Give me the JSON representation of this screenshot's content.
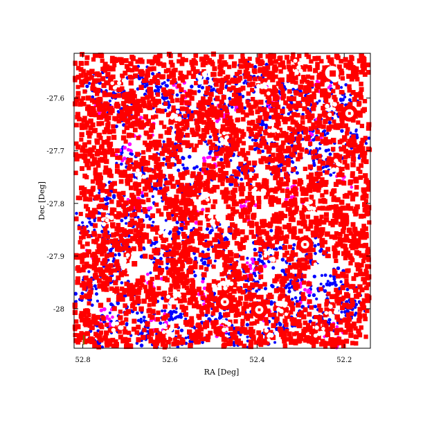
{
  "chart_data": {
    "type": "scatter",
    "title": "",
    "xlabel": "RA [Deg]",
    "ylabel": "Dec [Deg]",
    "xlim": [
      52.82,
      52.14
    ],
    "ylim": [
      -28.075,
      -27.515
    ],
    "x_ticks": [
      {
        "value": 52.8,
        "label": "52.8"
      },
      {
        "value": 52.6,
        "label": "52.6"
      },
      {
        "value": 52.4,
        "label": "52.4"
      },
      {
        "value": 52.2,
        "label": "52.2"
      }
    ],
    "y_ticks": [
      {
        "value": -27.6,
        "label": "-27.6"
      },
      {
        "value": -27.7,
        "label": "-27.7"
      },
      {
        "value": -27.8,
        "label": "-27.8"
      },
      {
        "value": -27.9,
        "label": "-27.9"
      },
      {
        "value": -28.0,
        "label": "-28"
      }
    ],
    "grid": false,
    "legend": null,
    "series": [
      {
        "color": "#0000ff",
        "marker": "circle",
        "cluster_points": [
          [
            52.76,
            -27.58
          ],
          [
            52.71,
            -27.62
          ],
          [
            52.66,
            -27.57
          ],
          [
            52.61,
            -27.6
          ],
          [
            52.56,
            -27.64
          ],
          [
            52.51,
            -27.58
          ],
          [
            52.46,
            -27.61
          ],
          [
            52.41,
            -27.56
          ],
          [
            52.36,
            -27.62
          ],
          [
            52.31,
            -27.59
          ],
          [
            52.26,
            -27.64
          ],
          [
            52.21,
            -27.6
          ],
          [
            52.18,
            -27.69
          ],
          [
            52.24,
            -27.73
          ],
          [
            52.29,
            -27.68
          ],
          [
            52.34,
            -27.72
          ],
          [
            52.39,
            -27.67
          ],
          [
            52.44,
            -27.74
          ],
          [
            52.49,
            -27.7
          ],
          [
            52.54,
            -27.76
          ],
          [
            52.59,
            -27.71
          ],
          [
            52.64,
            -27.77
          ],
          [
            52.69,
            -27.72
          ],
          [
            52.74,
            -27.79
          ],
          [
            52.78,
            -27.84
          ],
          [
            52.73,
            -27.88
          ],
          [
            52.68,
            -27.83
          ],
          [
            52.63,
            -27.9
          ],
          [
            52.58,
            -27.85
          ],
          [
            52.53,
            -27.91
          ],
          [
            52.48,
            -27.86
          ],
          [
            52.43,
            -27.93
          ],
          [
            52.38,
            -27.88
          ],
          [
            52.33,
            -27.94
          ],
          [
            52.28,
            -27.89
          ],
          [
            52.23,
            -27.95
          ],
          [
            52.19,
            -27.99
          ],
          [
            52.25,
            -28.02
          ],
          [
            52.3,
            -27.98
          ],
          [
            52.35,
            -28.04
          ],
          [
            52.4,
            -27.99
          ],
          [
            52.45,
            -28.05
          ],
          [
            52.5,
            -28.0
          ],
          [
            52.55,
            -28.06
          ],
          [
            52.6,
            -28.01
          ],
          [
            52.65,
            -28.05
          ],
          [
            52.7,
            -28.0
          ],
          [
            52.75,
            -28.04
          ],
          [
            52.79,
            -27.96
          ],
          [
            52.72,
            -27.93
          ]
        ]
      },
      {
        "color": "#ff00ff",
        "marker": "circle",
        "cluster_points": [
          [
            52.75,
            -27.62
          ],
          [
            52.66,
            -27.66
          ],
          [
            52.57,
            -27.59
          ],
          [
            52.47,
            -27.63
          ],
          [
            52.37,
            -27.6
          ],
          [
            52.27,
            -27.66
          ],
          [
            52.2,
            -27.75
          ],
          [
            52.32,
            -27.79
          ],
          [
            52.43,
            -27.81
          ],
          [
            52.55,
            -27.82
          ],
          [
            52.67,
            -27.8
          ],
          [
            52.77,
            -27.9
          ],
          [
            52.64,
            -27.95
          ],
          [
            52.52,
            -27.97
          ],
          [
            52.41,
            -27.92
          ],
          [
            52.29,
            -27.97
          ],
          [
            52.22,
            -28.05
          ],
          [
            52.37,
            -28.01
          ],
          [
            52.49,
            -28.04
          ],
          [
            52.62,
            -28.03
          ],
          [
            52.74,
            -28.02
          ],
          [
            52.24,
            -27.58
          ],
          [
            52.51,
            -27.72
          ],
          [
            52.7,
            -27.7
          ]
        ]
      },
      {
        "color": "#ff0000",
        "marker": "square",
        "cluster_points": [
          [
            52.8,
            -27.55
          ],
          [
            52.79,
            -27.62
          ],
          [
            52.8,
            -27.7
          ],
          [
            52.79,
            -27.78
          ],
          [
            52.8,
            -27.86
          ],
          [
            52.79,
            -27.94
          ],
          [
            52.8,
            -28.02
          ],
          [
            52.77,
            -28.06
          ],
          [
            52.7,
            -28.06
          ],
          [
            52.62,
            -28.06
          ],
          [
            52.54,
            -28.06
          ],
          [
            52.46,
            -28.06
          ],
          [
            52.38,
            -28.06
          ],
          [
            52.3,
            -28.06
          ],
          [
            52.22,
            -28.06
          ],
          [
            52.16,
            -28.02
          ],
          [
            52.15,
            -27.94
          ],
          [
            52.16,
            -27.86
          ],
          [
            52.15,
            -27.78
          ],
          [
            52.16,
            -27.7
          ],
          [
            52.15,
            -27.62
          ],
          [
            52.16,
            -27.55
          ],
          [
            52.23,
            -27.53
          ],
          [
            52.31,
            -27.53
          ],
          [
            52.39,
            -27.53
          ],
          [
            52.47,
            -27.53
          ],
          [
            52.55,
            -27.53
          ],
          [
            52.63,
            -27.53
          ],
          [
            52.71,
            -27.53
          ],
          [
            52.75,
            -27.66
          ],
          [
            52.69,
            -27.64
          ],
          [
            52.63,
            -27.69
          ],
          [
            52.57,
            -27.66
          ],
          [
            52.51,
            -27.65
          ],
          [
            52.45,
            -27.67
          ],
          [
            52.39,
            -27.64
          ],
          [
            52.33,
            -27.68
          ],
          [
            52.27,
            -27.66
          ],
          [
            52.21,
            -27.62
          ],
          [
            52.26,
            -27.58
          ],
          [
            52.32,
            -27.61
          ],
          [
            52.36,
            -27.57
          ],
          [
            52.44,
            -27.59
          ],
          [
            52.52,
            -27.61
          ],
          [
            52.6,
            -27.59
          ],
          [
            52.67,
            -27.61
          ],
          [
            52.73,
            -27.58
          ],
          [
            52.74,
            -27.74
          ],
          [
            52.68,
            -27.76
          ],
          [
            52.62,
            -27.74
          ],
          [
            52.56,
            -27.78
          ],
          [
            52.5,
            -27.77
          ],
          [
            52.44,
            -27.79
          ],
          [
            52.38,
            -27.76
          ],
          [
            52.32,
            -27.8
          ],
          [
            52.26,
            -27.77
          ],
          [
            52.2,
            -27.82
          ],
          [
            52.24,
            -27.86
          ],
          [
            52.3,
            -27.84
          ],
          [
            52.36,
            -27.87
          ],
          [
            52.42,
            -27.84
          ],
          [
            52.48,
            -27.88
          ],
          [
            52.54,
            -27.85
          ],
          [
            52.6,
            -27.89
          ],
          [
            52.66,
            -27.86
          ],
          [
            52.72,
            -27.88
          ],
          [
            52.76,
            -27.93
          ],
          [
            52.7,
            -27.97
          ],
          [
            52.64,
            -27.98
          ],
          [
            52.58,
            -27.95
          ],
          [
            52.52,
            -28.0
          ],
          [
            52.46,
            -27.97
          ],
          [
            52.4,
            -28.01
          ],
          [
            52.34,
            -27.98
          ],
          [
            52.28,
            -28.03
          ],
          [
            52.21,
            -27.98
          ],
          [
            52.19,
            -27.9
          ],
          [
            52.22,
            -27.72
          ],
          [
            52.35,
            -27.71
          ],
          [
            52.47,
            -27.72
          ],
          [
            52.59,
            -27.8
          ],
          [
            52.71,
            -27.82
          ],
          [
            52.56,
            -27.92
          ],
          [
            52.44,
            -27.94
          ],
          [
            52.31,
            -27.92
          ]
        ]
      },
      {
        "color": "#ffffff",
        "marker": "circle",
        "cluster_points": [
          [
            52.72,
            -27.57
          ],
          [
            52.53,
            -27.56
          ],
          [
            52.38,
            -27.58
          ],
          [
            52.31,
            -27.54
          ],
          [
            52.23,
            -27.62
          ],
          [
            52.58,
            -27.64
          ],
          [
            52.47,
            -27.68
          ],
          [
            52.36,
            -27.66
          ],
          [
            52.22,
            -27.73
          ],
          [
            52.67,
            -27.74
          ],
          [
            52.53,
            -27.79
          ],
          [
            52.4,
            -27.78
          ],
          [
            52.28,
            -27.81
          ],
          [
            52.74,
            -27.83
          ],
          [
            52.61,
            -27.86
          ],
          [
            52.5,
            -27.83
          ],
          [
            52.37,
            -27.9
          ],
          [
            52.25,
            -27.92
          ],
          [
            52.7,
            -27.91
          ],
          [
            52.59,
            -27.98
          ],
          [
            52.47,
            -27.95
          ],
          [
            52.34,
            -28.0
          ],
          [
            52.23,
            -28.0
          ],
          [
            52.72,
            -28.03
          ],
          [
            52.6,
            -28.04
          ],
          [
            52.48,
            -28.03
          ],
          [
            52.37,
            -28.05
          ],
          [
            52.26,
            -28.04
          ]
        ]
      }
    ],
    "features": [
      {
        "color": "#ffffff",
        "ra": 52.683,
        "dec": -27.912,
        "shape": "triangle"
      },
      {
        "color": "#ffffff",
        "ra": 52.228,
        "dec": -27.552,
        "shape": "blob"
      },
      {
        "color": "#ffffff",
        "ra": 52.188,
        "dec": -27.629,
        "shape": "ring"
      },
      {
        "color": "#ffffff",
        "ra": 52.29,
        "dec": -27.878,
        "shape": "ring"
      },
      {
        "color": "#ffffff",
        "ra": 52.474,
        "dec": -27.987,
        "shape": "ring"
      },
      {
        "color": "#ffffff",
        "ra": 52.395,
        "dec": -28.002,
        "shape": "ring"
      }
    ]
  }
}
